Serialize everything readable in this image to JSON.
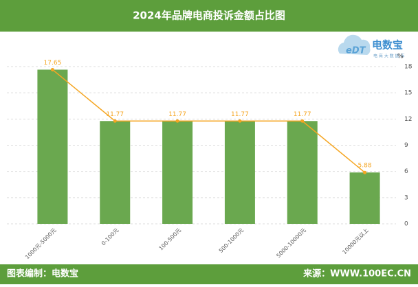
{
  "chart_data": {
    "type": "bar",
    "title": "2024年品牌电商投诉金额占比图",
    "categories": [
      "1000元-5000元",
      "0-100元",
      "100-500元",
      "500-1000元",
      "5000-10000元",
      "10000元以上"
    ],
    "values": [
      17.65,
      11.77,
      11.77,
      11.77,
      11.77,
      5.88
    ],
    "color": "#6aa84f",
    "line_color": "#f5a623",
    "y_axis_label": "%",
    "y_axis_side": "right",
    "ylim": [
      0,
      18
    ],
    "yticks": [
      0,
      3,
      6,
      9,
      12,
      15,
      18
    ],
    "grid": true
  },
  "logo": {
    "mark": "eDT",
    "name": "电数宝",
    "tagline": "电 商 大 数 据 库"
  },
  "footer": {
    "left": "图表编制：电数宝",
    "right": "来源：WWW.100EC.CN"
  }
}
